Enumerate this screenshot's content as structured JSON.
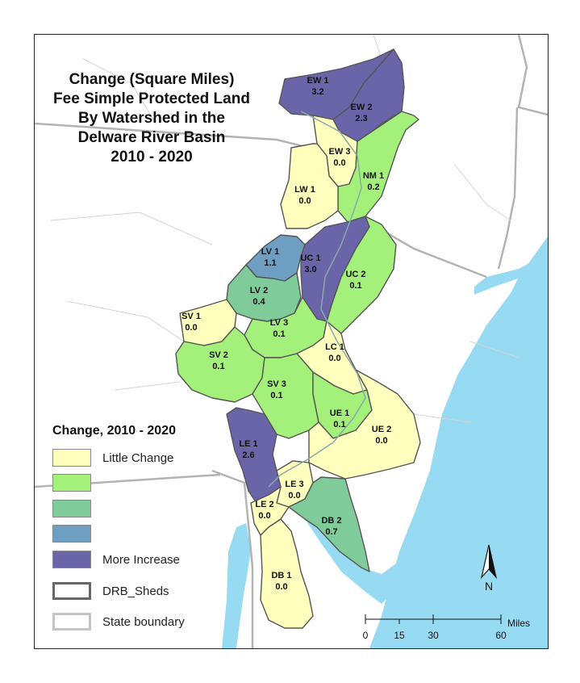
{
  "title": {
    "lines": [
      "Change (Square Miles)",
      "Fee Simple Protected Land",
      "By Watershed  in the",
      "Delware River Basin",
      "2010 - 2020"
    ]
  },
  "colors": {
    "little_change": "#ffffbe",
    "class2": "#a3f07a",
    "class3": "#7fcc9a",
    "class4": "#6f9ec3",
    "more_increase": "#6a64a8",
    "water": "#97dbf2",
    "land_out": "#ffffff"
  },
  "watersheds": [
    {
      "id": "EW 1",
      "value": "3.2",
      "class": "more_increase"
    },
    {
      "id": "EW 2",
      "value": "2.3",
      "class": "more_increase"
    },
    {
      "id": "EW 3",
      "value": "0.0",
      "class": "little_change"
    },
    {
      "id": "NM 1",
      "value": "0.2",
      "class": "class2"
    },
    {
      "id": "LW 1",
      "value": "0.0",
      "class": "little_change"
    },
    {
      "id": "LV 1",
      "value": "1.1",
      "class": "class4"
    },
    {
      "id": "UC 1",
      "value": "3.0",
      "class": "more_increase"
    },
    {
      "id": "UC 2",
      "value": "0.1",
      "class": "class2"
    },
    {
      "id": "LV 2",
      "value": "0.4",
      "class": "class3"
    },
    {
      "id": "SV 1",
      "value": "0.0",
      "class": "little_change"
    },
    {
      "id": "LV 3",
      "value": "0.1",
      "class": "class2"
    },
    {
      "id": "LC 1",
      "value": "0.0",
      "class": "little_change"
    },
    {
      "id": "SV 2",
      "value": "0.1",
      "class": "class2"
    },
    {
      "id": "SV 3",
      "value": "0.1",
      "class": "class2"
    },
    {
      "id": "UE 1",
      "value": "0.1",
      "class": "class2"
    },
    {
      "id": "UE 2",
      "value": "0.0",
      "class": "little_change"
    },
    {
      "id": "LE 1",
      "value": "2.6",
      "class": "more_increase"
    },
    {
      "id": "LE 3",
      "value": "0.0",
      "class": "little_change"
    },
    {
      "id": "LE 2",
      "value": "0.0",
      "class": "little_change"
    },
    {
      "id": "DB 2",
      "value": "0.7",
      "class": "class3"
    },
    {
      "id": "DB 1",
      "value": "0.0",
      "class": "little_change"
    }
  ],
  "legend": {
    "title": "Change, 2010 - 2020",
    "items": [
      {
        "label": "Little Change",
        "class": "little_change"
      },
      {
        "label": "",
        "class": "class2"
      },
      {
        "label": "",
        "class": "class3"
      },
      {
        "label": "",
        "class": "class4"
      },
      {
        "label": "More Increase",
        "class": "more_increase"
      },
      {
        "label": "DRB_Sheds",
        "class": "sheds"
      },
      {
        "label": "State boundary",
        "class": "state"
      }
    ]
  },
  "north_arrow": {
    "label": "N"
  },
  "scale_bar": {
    "ticks": [
      "0",
      "15",
      "30",
      "60"
    ],
    "unit": "Miles"
  }
}
